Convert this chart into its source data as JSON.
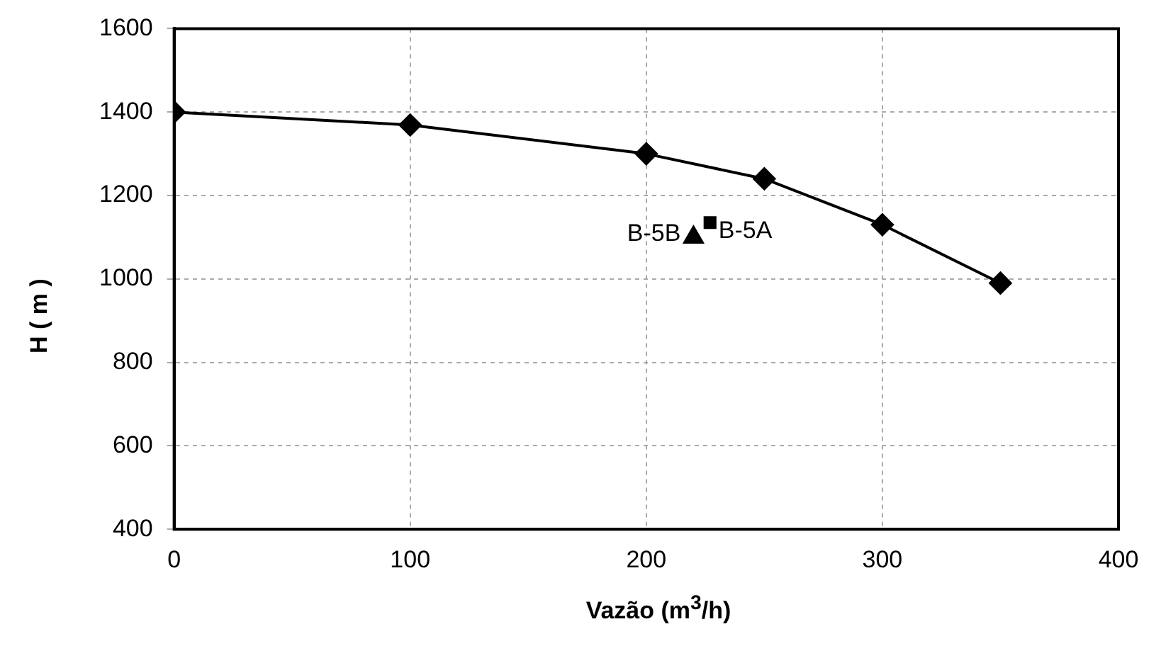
{
  "chart_data": {
    "type": "line",
    "xlabel": "Vazão (m$^{3}$/h)",
    "ylabel": "H ( m )",
    "xlim": [
      0,
      400
    ],
    "xticks": [
      0,
      100,
      200,
      300,
      400
    ],
    "ylim": [
      400,
      1600
    ],
    "yticks": [
      400,
      600,
      800,
      1000,
      1200,
      1400,
      1600
    ],
    "grid": true,
    "legend": false,
    "series": [
      {
        "type": "line",
        "color": "#000000",
        "marker": "diamond",
        "x": [
          0,
          100,
          200,
          250,
          300,
          350
        ],
        "values": [
          1400,
          1369,
          1300,
          1240,
          1130,
          990
        ]
      },
      {
        "type": "scatter",
        "name": "B-5B",
        "color": "#000000",
        "marker": "triangle",
        "x": [
          220
        ],
        "values": [
          1100
        ]
      },
      {
        "type": "scatter",
        "name": "B-5A",
        "color": "#000000",
        "marker": "square",
        "x": [
          227
        ],
        "values": [
          1135
        ]
      }
    ]
  }
}
